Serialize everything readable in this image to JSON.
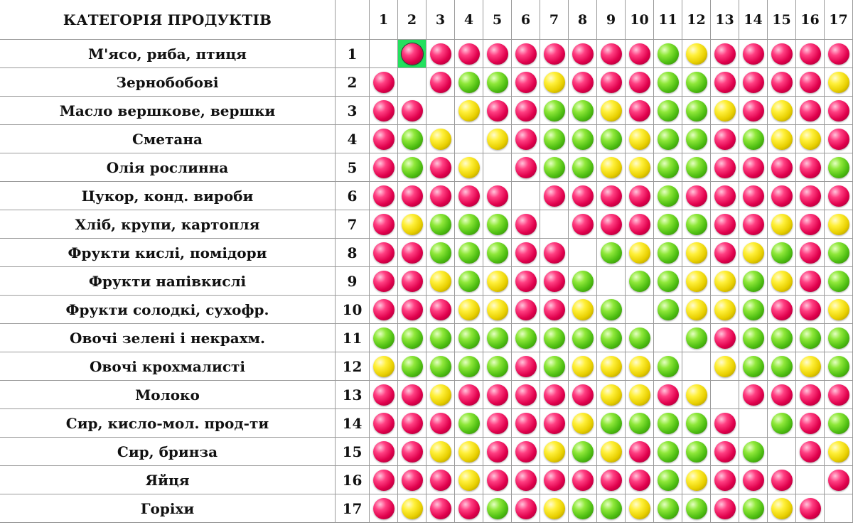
{
  "header": {
    "category_title": "КАТЕГОРІЯ ПРОДУКТІВ",
    "column_numbers": [
      "1",
      "2",
      "3",
      "4",
      "5",
      "6",
      "7",
      "8",
      "9",
      "10",
      "11",
      "12",
      "13",
      "14",
      "15",
      "16",
      "17"
    ]
  },
  "legend_colors": {
    "r": "#e0004c",
    "g": "#4fbf12",
    "y": "#e8cf00"
  },
  "selected_cell": {
    "row": 1,
    "col": 2,
    "highlight": "#23e05e"
  },
  "rows": [
    {
      "num": "1",
      "label": "М'ясо, риба, птиця",
      "cells": [
        "-",
        "r",
        "r",
        "r",
        "r",
        "r",
        "r",
        "r",
        "r",
        "r",
        "g",
        "y",
        "r",
        "r",
        "r",
        "r",
        "r"
      ]
    },
    {
      "num": "2",
      "label": "Зернобобові",
      "cells": [
        "r",
        "-",
        "r",
        "g",
        "g",
        "r",
        "y",
        "r",
        "r",
        "r",
        "g",
        "g",
        "r",
        "r",
        "r",
        "r",
        "y"
      ]
    },
    {
      "num": "3",
      "label": "Масло вершкове, вершки",
      "cells": [
        "r",
        "r",
        "-",
        "y",
        "r",
        "r",
        "g",
        "g",
        "y",
        "r",
        "g",
        "g",
        "y",
        "r",
        "y",
        "r",
        "r"
      ]
    },
    {
      "num": "4",
      "label": "Сметана",
      "cells": [
        "r",
        "g",
        "y",
        "-",
        "y",
        "r",
        "g",
        "g",
        "g",
        "y",
        "g",
        "g",
        "r",
        "g",
        "y",
        "y",
        "r"
      ]
    },
    {
      "num": "5",
      "label": "Олія рослинна",
      "cells": [
        "r",
        "g",
        "r",
        "y",
        "-",
        "r",
        "g",
        "g",
        "y",
        "y",
        "g",
        "g",
        "r",
        "r",
        "r",
        "r",
        "g"
      ]
    },
    {
      "num": "6",
      "label": "Цукор, конд. вироби",
      "cells": [
        "r",
        "r",
        "r",
        "r",
        "r",
        "-",
        "r",
        "r",
        "r",
        "r",
        "g",
        "r",
        "r",
        "r",
        "r",
        "r",
        "r"
      ]
    },
    {
      "num": "7",
      "label": "Хліб, крупи, картопля",
      "cells": [
        "r",
        "y",
        "g",
        "g",
        "g",
        "r",
        "-",
        "r",
        "r",
        "r",
        "g",
        "g",
        "r",
        "r",
        "y",
        "r",
        "y"
      ]
    },
    {
      "num": "8",
      "label": "Фрукти кислі, помідори",
      "cells": [
        "r",
        "r",
        "g",
        "g",
        "g",
        "r",
        "r",
        "-",
        "g",
        "y",
        "g",
        "y",
        "r",
        "y",
        "g",
        "r",
        "g"
      ]
    },
    {
      "num": "9",
      "label": "Фрукти напівкислі",
      "cells": [
        "r",
        "r",
        "y",
        "g",
        "y",
        "r",
        "r",
        "g",
        "-",
        "g",
        "g",
        "y",
        "y",
        "g",
        "y",
        "r",
        "g"
      ]
    },
    {
      "num": "10",
      "label": "Фрукти солодкі, сухофр.",
      "cells": [
        "r",
        "r",
        "r",
        "y",
        "y",
        "r",
        "r",
        "y",
        "g",
        "-",
        "g",
        "y",
        "y",
        "g",
        "r",
        "r",
        "y"
      ]
    },
    {
      "num": "11",
      "label": "Овочі зелені і некрахм.",
      "cells": [
        "g",
        "g",
        "g",
        "g",
        "g",
        "g",
        "g",
        "g",
        "g",
        "g",
        "-",
        "g",
        "r",
        "g",
        "g",
        "g",
        "g"
      ]
    },
    {
      "num": "12",
      "label": "Овочі крохмалисті",
      "cells": [
        "y",
        "g",
        "g",
        "g",
        "g",
        "r",
        "g",
        "y",
        "y",
        "y",
        "g",
        "-",
        "y",
        "g",
        "g",
        "y",
        "g"
      ]
    },
    {
      "num": "13",
      "label": "Молоко",
      "cells": [
        "r",
        "r",
        "y",
        "r",
        "r",
        "r",
        "r",
        "r",
        "y",
        "y",
        "r",
        "y",
        "-",
        "r",
        "r",
        "r",
        "r"
      ]
    },
    {
      "num": "14",
      "label": "Сир, кисло-мол. прод-ти",
      "cells": [
        "r",
        "r",
        "r",
        "g",
        "r",
        "r",
        "r",
        "y",
        "g",
        "g",
        "g",
        "g",
        "r",
        "-",
        "g",
        "r",
        "g"
      ]
    },
    {
      "num": "15",
      "label": "Сир, бринза",
      "cells": [
        "r",
        "r",
        "y",
        "y",
        "r",
        "r",
        "y",
        "g",
        "y",
        "r",
        "g",
        "g",
        "r",
        "g",
        "-",
        "r",
        "y"
      ]
    },
    {
      "num": "16",
      "label": "Яйця",
      "cells": [
        "r",
        "r",
        "r",
        "y",
        "r",
        "r",
        "r",
        "r",
        "r",
        "r",
        "g",
        "y",
        "r",
        "r",
        "r",
        "-",
        "r"
      ]
    },
    {
      "num": "17",
      "label": "Горіхи",
      "cells": [
        "r",
        "y",
        "r",
        "r",
        "g",
        "r",
        "y",
        "g",
        "g",
        "y",
        "g",
        "g",
        "r",
        "g",
        "y",
        "r",
        "-"
      ]
    }
  ]
}
